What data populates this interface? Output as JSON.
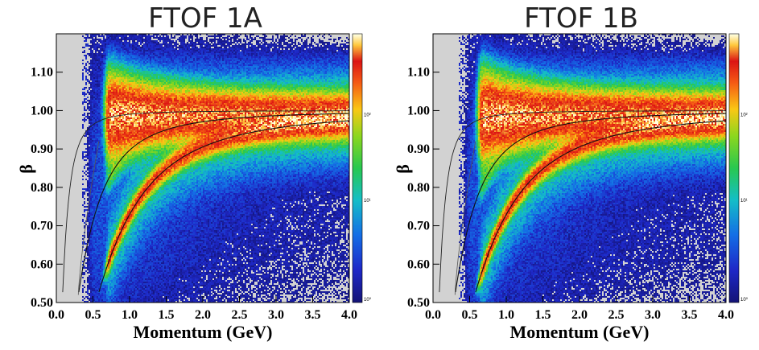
{
  "chart_data": [
    {
      "type": "heatmap",
      "title": "FTOF 1A",
      "xlabel": "Momentum  (GeV)",
      "ylabel": "β",
      "xlim": [
        0.0,
        4.0
      ],
      "ylim": [
        0.5,
        1.2
      ],
      "xticks": [
        "0.0",
        "0.5",
        "1.0",
        "1.5",
        "2.0",
        "2.5",
        "3.0",
        "3.5",
        "4.0"
      ],
      "yticks": [
        "0.50",
        "0.60",
        "0.70",
        "0.80",
        "0.90",
        "1.00",
        "1.10"
      ],
      "colorbar": {
        "scale": "log",
        "labels": [
          "10⁰",
          "10¹",
          "10²"
        ]
      },
      "overlay_curves": [
        {
          "particle_mass_gev": 0.0
        },
        {
          "particle_mass_gev": 0.1396
        },
        {
          "particle_mass_gev": 0.4937
        },
        {
          "particle_mass_gev": 0.9383
        }
      ],
      "bands": [
        {
          "mass": 0.0,
          "beta": 0.985,
          "peak_log": 2.45
        },
        {
          "mass": 0.1396,
          "peak_log": 2.0
        },
        {
          "mass": 0.4937,
          "peak_log": 1.25
        },
        {
          "mass": 0.9383,
          "peak_log": 2.3
        }
      ],
      "min_momentum": 0.7
    },
    {
      "type": "heatmap",
      "title": "FTOF 1B",
      "xlabel": "Momentum  (GeV)",
      "ylabel": "β",
      "xlim": [
        0.0,
        4.0
      ],
      "ylim": [
        0.5,
        1.2
      ],
      "xticks": [
        "0.0",
        "0.5",
        "1.0",
        "1.5",
        "2.0",
        "2.5",
        "3.0",
        "3.5",
        "4.0"
      ],
      "yticks": [
        "0.50",
        "0.60",
        "0.70",
        "0.80",
        "0.90",
        "1.00",
        "1.10"
      ],
      "colorbar": {
        "scale": "log",
        "labels": [
          "10⁰",
          "10¹",
          "10²"
        ]
      },
      "overlay_curves": [
        {
          "particle_mass_gev": 0.0
        },
        {
          "particle_mass_gev": 0.1396
        },
        {
          "particle_mass_gev": 0.4937
        },
        {
          "particle_mass_gev": 0.9383
        }
      ],
      "bands": [
        {
          "mass": 0.0,
          "beta": 0.985,
          "peak_log": 2.45
        },
        {
          "mass": 0.1396,
          "peak_log": 2.0
        },
        {
          "mass": 0.4937,
          "peak_log": 1.25
        },
        {
          "mass": 0.9383,
          "peak_log": 2.3
        }
      ],
      "min_momentum": 0.65
    }
  ]
}
